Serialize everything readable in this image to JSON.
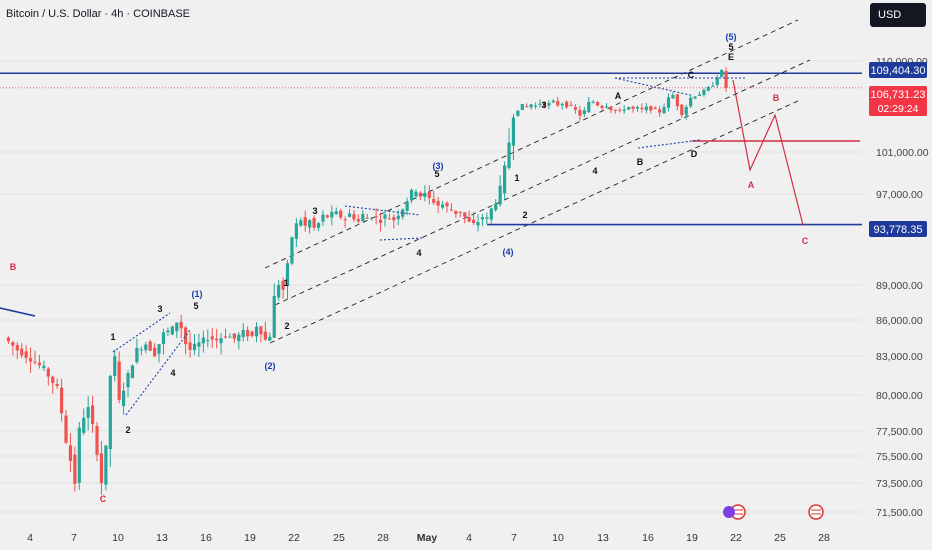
{
  "header": {
    "title": "Bitcoin / U.S. Dollar · 4h · COINBASE",
    "currency": "USD"
  },
  "price_tags": {
    "resistance": "109,404.30",
    "current": "106,731.23",
    "countdown": "02:29:24",
    "support": "93,778.35"
  },
  "colors": {
    "up": "#26a69a",
    "down": "#ef5350",
    "level": "#1e3a9a",
    "projection": "#d22e44",
    "channel": "#222222",
    "wave_blue": "#1a3fa8"
  },
  "chart_data": {
    "type": "candlestick",
    "title": "Bitcoin / U.S. Dollar · 4h · COINBASE",
    "ylim": [
      70500,
      114500
    ],
    "y_ticks": [
      "110,000.00",
      "101,000.00",
      "97,000.00",
      "89,000.00",
      "86,000.00",
      "83,000.00",
      "80,000.00",
      "77,500.00",
      "75,500.00",
      "73,500.00",
      "71,500.00"
    ],
    "x_ticks": [
      "4",
      "7",
      "10",
      "13",
      "16",
      "19",
      "22",
      "25",
      "28",
      "May",
      "4",
      "7",
      "10",
      "13",
      "16",
      "19",
      "22",
      "25",
      "28"
    ],
    "horizontal_levels": [
      109404.3,
      106731.23,
      93778.35
    ],
    "price_path": [
      [
        0,
        84500
      ],
      [
        3,
        83500
      ],
      [
        6,
        82800
      ],
      [
        9,
        82000
      ],
      [
        12,
        80500
      ],
      [
        14,
        77000
      ],
      [
        15,
        76000
      ],
      [
        16,
        74800
      ],
      [
        17,
        77500
      ],
      [
        18,
        78500
      ],
      [
        19,
        79000
      ],
      [
        21,
        76500
      ],
      [
        22,
        74800
      ],
      [
        23,
        76500
      ],
      [
        24,
        81500
      ],
      [
        25,
        82800
      ],
      [
        26,
        79500
      ],
      [
        28,
        81500
      ],
      [
        30,
        83500
      ],
      [
        32,
        84000
      ],
      [
        34,
        83200
      ],
      [
        36,
        84800
      ],
      [
        38,
        85200
      ],
      [
        39,
        85800
      ],
      [
        40,
        85300
      ],
      [
        41,
        84000
      ],
      [
        42,
        83500
      ],
      [
        44,
        84000
      ],
      [
        46,
        84500
      ],
      [
        48,
        84300
      ],
      [
        50,
        84700
      ],
      [
        52,
        84400
      ],
      [
        54,
        84900
      ],
      [
        56,
        84600
      ],
      [
        57,
        85500
      ],
      [
        58,
        85000
      ],
      [
        59,
        84300
      ],
      [
        60,
        84700
      ],
      [
        61,
        87300
      ],
      [
        62,
        88200
      ],
      [
        63,
        87800
      ],
      [
        64,
        89500
      ],
      [
        65,
        92500
      ],
      [
        66,
        93800
      ],
      [
        67,
        94300
      ],
      [
        68,
        93600
      ],
      [
        69,
        94200
      ],
      [
        70,
        93400
      ],
      [
        71,
        93900
      ],
      [
        72,
        94700
      ],
      [
        73,
        94600
      ],
      [
        74,
        94900
      ],
      [
        75,
        95000
      ],
      [
        76,
        94600
      ],
      [
        77,
        94400
      ],
      [
        78,
        94900
      ],
      [
        79,
        94500
      ],
      [
        80,
        94100
      ],
      [
        81,
        94800
      ],
      [
        82,
        94400
      ],
      [
        83,
        94700
      ],
      [
        84,
        94500
      ],
      [
        85,
        94200
      ],
      [
        86,
        94700
      ],
      [
        87,
        94500
      ],
      [
        88,
        94300
      ],
      [
        89,
        94900
      ],
      [
        90,
        95500
      ],
      [
        91,
        96300
      ],
      [
        92,
        97000
      ],
      [
        93,
        97300
      ],
      [
        94,
        96800
      ],
      [
        95,
        96900
      ],
      [
        96,
        96500
      ],
      [
        97,
        96200
      ],
      [
        98,
        95800
      ],
      [
        99,
        95900
      ],
      [
        100,
        95600
      ],
      [
        101,
        95300
      ],
      [
        102,
        95000
      ],
      [
        103,
        95100
      ],
      [
        104,
        94600
      ],
      [
        105,
        94000
      ],
      [
        106,
        93800
      ],
      [
        107,
        94100
      ],
      [
        108,
        94600
      ],
      [
        109,
        94400
      ],
      [
        110,
        95400
      ],
      [
        111,
        96200
      ],
      [
        112,
        97200
      ],
      [
        113,
        98300
      ],
      [
        114,
        99800
      ],
      [
        115,
        101500
      ],
      [
        116,
        102800
      ],
      [
        117,
        103500
      ],
      [
        118,
        103300
      ],
      [
        119,
        103700
      ],
      [
        120,
        103400
      ],
      [
        121,
        103900
      ],
      [
        122,
        103500
      ],
      [
        123,
        103800
      ],
      [
        124,
        104200
      ],
      [
        125,
        103600
      ],
      [
        126,
        103900
      ],
      [
        127,
        103400
      ],
      [
        128,
        103300
      ],
      [
        129,
        102600
      ],
      [
        130,
        101700
      ],
      [
        131,
        102500
      ],
      [
        132,
        104000
      ],
      [
        133,
        104200
      ],
      [
        134,
        103600
      ],
      [
        135,
        103200
      ],
      [
        136,
        103500
      ],
      [
        137,
        102800
      ],
      [
        138,
        102500
      ],
      [
        139,
        102400
      ],
      [
        140,
        102900
      ],
      [
        141,
        103200
      ],
      [
        142,
        102800
      ],
      [
        143,
        103000
      ],
      [
        144,
        102700
      ],
      [
        145,
        103100
      ],
      [
        146,
        102800
      ],
      [
        147,
        102600
      ],
      [
        148,
        102300
      ],
      [
        149,
        103300
      ],
      [
        150,
        104800
      ],
      [
        151,
        105400
      ],
      [
        152,
        103500
      ],
      [
        153,
        102000
      ],
      [
        154,
        103300
      ],
      [
        155,
        104900
      ],
      [
        156,
        105300
      ],
      [
        157,
        105600
      ],
      [
        158,
        106100
      ],
      [
        159,
        106700
      ],
      [
        160,
        107300
      ],
      [
        161,
        108800
      ],
      [
        162,
        109800
      ],
      [
        163,
        106731
      ]
    ]
  },
  "wave_labels": [
    {
      "text": "B",
      "color": "red"
    },
    {
      "text": "C",
      "color": "red"
    },
    {
      "text": "1",
      "color": "black"
    },
    {
      "text": "2",
      "color": "black"
    },
    {
      "text": "3",
      "color": "black"
    },
    {
      "text": "4",
      "color": "black"
    },
    {
      "text": "5",
      "color": "black"
    },
    {
      "text": "(1)",
      "color": "blue"
    },
    {
      "text": "(2)",
      "color": "blue"
    },
    {
      "text": "1",
      "color": "black"
    },
    {
      "text": "2",
      "color": "black"
    },
    {
      "text": "3",
      "color": "black"
    },
    {
      "text": "4",
      "color": "black"
    },
    {
      "text": "(3)",
      "color": "blue"
    },
    {
      "text": "5",
      "color": "black"
    },
    {
      "text": "(4)",
      "color": "blue"
    },
    {
      "text": "1",
      "color": "black"
    },
    {
      "text": "2",
      "color": "black"
    },
    {
      "text": "3",
      "color": "black"
    },
    {
      "text": "4",
      "color": "black"
    },
    {
      "text": "A",
      "color": "black"
    },
    {
      "text": "B",
      "color": "black"
    },
    {
      "text": "C",
      "color": "black"
    },
    {
      "text": "D",
      "color": "black"
    },
    {
      "text": "(5)",
      "color": "blue"
    },
    {
      "text": "5",
      "color": "black"
    },
    {
      "text": "E",
      "color": "black"
    },
    {
      "text": "A",
      "color": "red"
    },
    {
      "text": "B",
      "color": "red"
    },
    {
      "text": "C",
      "color": "red"
    }
  ]
}
